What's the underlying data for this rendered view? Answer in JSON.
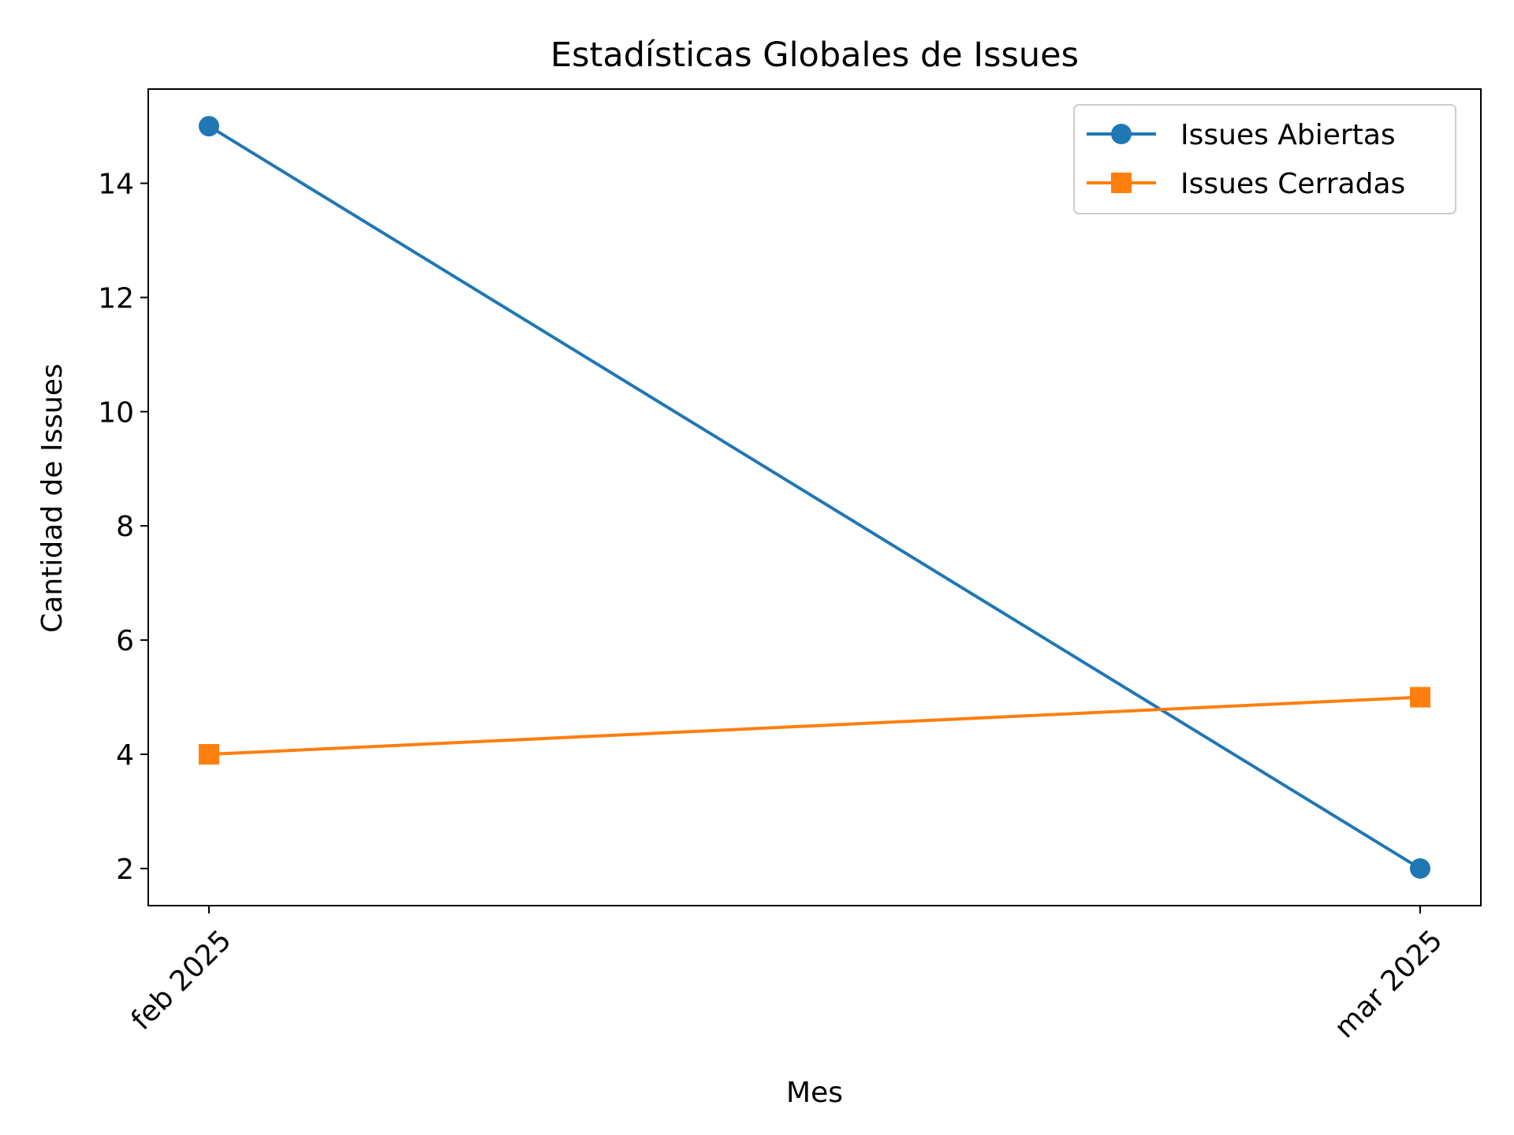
{
  "chart_data": {
    "type": "line",
    "title": "Estadísticas Globales de Issues",
    "xlabel": "Mes",
    "ylabel": "Cantidad de Issues",
    "categories": [
      "feb 2025",
      "mar 2025"
    ],
    "x_tick_labels": [
      "feb 2025",
      "mar 2025"
    ],
    "y_ticks": [
      2,
      4,
      6,
      8,
      10,
      12,
      14
    ],
    "ylim": [
      1.35,
      15.65
    ],
    "grid": false,
    "legend": "upper right",
    "series": [
      {
        "name": "Issues Abiertas",
        "values": [
          15,
          2
        ],
        "color": "#1f77b4",
        "marker": "circle"
      },
      {
        "name": "Issues Cerradas",
        "values": [
          4,
          5
        ],
        "color": "#ff7f0e",
        "marker": "square"
      }
    ]
  }
}
